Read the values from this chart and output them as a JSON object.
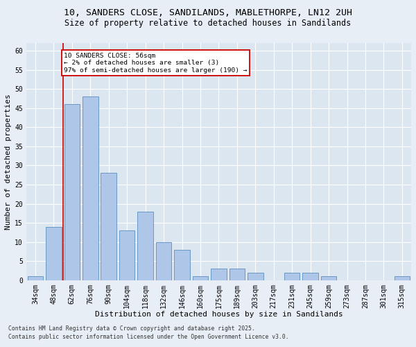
{
  "title_line1": "10, SANDERS CLOSE, SANDILANDS, MABLETHORPE, LN12 2UH",
  "title_line2": "Size of property relative to detached houses in Sandilands",
  "xlabel": "Distribution of detached houses by size in Sandilands",
  "ylabel": "Number of detached properties",
  "categories": [
    "34sqm",
    "48sqm",
    "62sqm",
    "76sqm",
    "90sqm",
    "104sqm",
    "118sqm",
    "132sqm",
    "146sqm",
    "160sqm",
    "175sqm",
    "189sqm",
    "203sqm",
    "217sqm",
    "231sqm",
    "245sqm",
    "259sqm",
    "273sqm",
    "287sqm",
    "301sqm",
    "315sqm"
  ],
  "values": [
    1,
    14,
    46,
    48,
    28,
    13,
    18,
    10,
    8,
    1,
    3,
    3,
    2,
    0,
    2,
    2,
    1,
    0,
    0,
    0,
    1
  ],
  "bar_color": "#aec6e8",
  "bar_edge_color": "#5a8fc0",
  "annotation_text": "10 SANDERS CLOSE: 56sqm\n← 2% of detached houses are smaller (3)\n97% of semi-detached houses are larger (190) →",
  "annotation_box_color": "#ffffff",
  "annotation_box_edge": "#cc0000",
  "red_line_color": "#cc0000",
  "ylim": [
    0,
    62
  ],
  "yticks": [
    0,
    5,
    10,
    15,
    20,
    25,
    30,
    35,
    40,
    45,
    50,
    55,
    60
  ],
  "footer_line1": "Contains HM Land Registry data © Crown copyright and database right 2025.",
  "footer_line2": "Contains public sector information licensed under the Open Government Licence v3.0.",
  "bg_color": "#e8eef5",
  "plot_bg_color": "#dce6f0",
  "grid_color": "#ffffff",
  "title_fontsize": 9.5,
  "subtitle_fontsize": 8.5,
  "tick_fontsize": 7,
  "label_fontsize": 8,
  "footer_fontsize": 5.8
}
